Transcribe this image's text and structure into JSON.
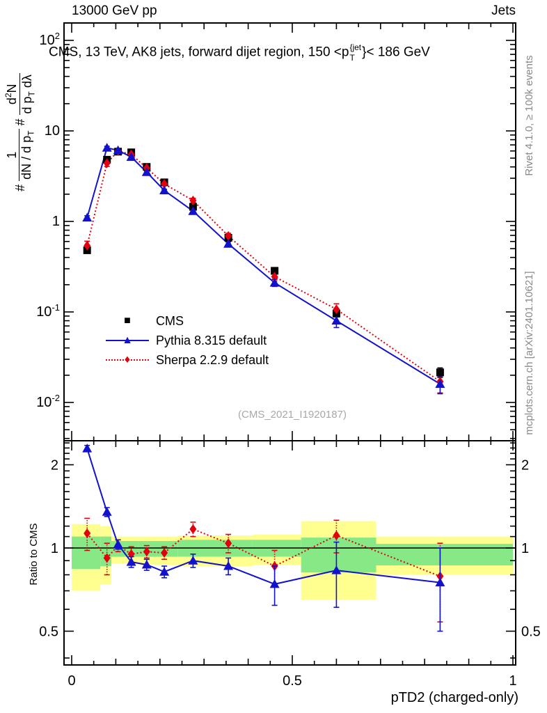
{
  "header": {
    "beam": "13000 GeV pp",
    "topic": "Jets"
  },
  "title": {
    "pre": "CMS, 13 TeV, AK8 jets, forward dijet region, 150 <p",
    "sup": "{jet",
    "sub": "T",
    "post": "}< 186 GeV"
  },
  "watermark": "(CMS_2021_I1920187)",
  "side_notes": {
    "top": "Rivet 4.1.0, ≥ 100k events",
    "bottom": "mcplots.cern.ch [arXiv:2401.10621]"
  },
  "axes": {
    "x": {
      "title": "pTD2 (charged-only)",
      "min": 0,
      "max": 1,
      "ticks": [
        {
          "v": 0,
          "label": "0"
        },
        {
          "v": 0.5,
          "label": "0.5"
        },
        {
          "v": 1,
          "label": "1"
        }
      ]
    },
    "y_main": {
      "label_parts": {
        "hash1": "#",
        "f1num": "1",
        "f1den_pre": "dN / d p",
        "f1den_sub": "T",
        "hash2": "#",
        "f2num_pre": "d",
        "f2num_sup": "2",
        "f2num_post": "N",
        "f2den_pre": "d p",
        "f2den_sub": "T",
        "f2den_post": " dλ"
      },
      "ticks": [
        {
          "v": 100,
          "base": "10",
          "exp": "2"
        },
        {
          "v": 10,
          "base": "10",
          "exp": ""
        },
        {
          "v": 1,
          "base": "1",
          "exp": ""
        },
        {
          "v": 0.1,
          "base": "10",
          "exp": "-1"
        },
        {
          "v": 0.01,
          "base": "10",
          "exp": "-2"
        }
      ]
    },
    "y_ratio": {
      "label": "Ratio to CMS",
      "ticks": [
        {
          "v": 2,
          "label": "2"
        },
        {
          "v": 1,
          "label": "1"
        },
        {
          "v": 0.5,
          "label": "0.5"
        }
      ]
    }
  },
  "legend": [
    {
      "label": "CMS",
      "marker": "square",
      "color": "#000000",
      "line": "none"
    },
    {
      "label": "Pythia 8.315 default",
      "marker": "triangle",
      "color": "#1212cc",
      "line": "solid"
    },
    {
      "label": "Sherpa 2.2.9 default",
      "marker": "diamond",
      "color": "#e3000e",
      "line": "dotted"
    }
  ],
  "chart_data": {
    "type": "line",
    "title": "CMS, 13 TeV, AK8 jets, forward dijet region, 150 < pT^{jet} < 186 GeV",
    "xlabel": "pTD2 (charged-only)",
    "ylabel": "# 1/(dN/dpT) d²N/(dpT dλ)",
    "ratio_ylabel": "Ratio to CMS",
    "x_range": [
      0,
      1
    ],
    "y_main_range": [
      0.004,
      150
    ],
    "y_ratio_range": [
      0.38,
      2.44
    ],
    "grid": false,
    "legend_position": "left-middle",
    "x": [
      0.035,
      0.08,
      0.105,
      0.135,
      0.17,
      0.21,
      0.275,
      0.355,
      0.46,
      0.6,
      0.835
    ],
    "series": [
      {
        "name": "CMS",
        "marker": "square",
        "color": "#000000",
        "line": "none",
        "values": [
          0.48,
          4.8,
          5.9,
          5.8,
          4.0,
          2.7,
          1.45,
          0.66,
          0.285,
          0.096,
          0.0215
        ],
        "rel_err": [
          0.05,
          0.03,
          0.02,
          0.02,
          0.02,
          0.02,
          0.03,
          0.04,
          0.05,
          0.08,
          0.12
        ]
      },
      {
        "name": "Pythia 8.315 default",
        "marker": "triangle",
        "color": "#1212cc",
        "line": "solid",
        "values": [
          1.1,
          6.5,
          6.1,
          5.15,
          3.5,
          2.2,
          1.3,
          0.565,
          0.21,
          0.08,
          0.016
        ],
        "rel_err": [
          0.05,
          0.04,
          0.03,
          0.03,
          0.03,
          0.03,
          0.04,
          0.05,
          0.09,
          0.16,
          0.22
        ]
      },
      {
        "name": "Sherpa 2.2.9 default",
        "marker": "diamond",
        "color": "#e3000e",
        "line": "dotted",
        "values": [
          0.54,
          4.4,
          6.0,
          5.5,
          3.9,
          2.6,
          1.7,
          0.69,
          0.245,
          0.107,
          0.017
        ],
        "rel_err": [
          0.12,
          0.08,
          0.04,
          0.04,
          0.04,
          0.04,
          0.06,
          0.07,
          0.1,
          0.15,
          0.25
        ]
      }
    ],
    "ratio": {
      "baseline": 1,
      "pythia": [
        2.29,
        1.35,
        1.03,
        0.89,
        0.87,
        0.82,
        0.9,
        0.86,
        0.74,
        0.83,
        0.75
      ],
      "pythia_err": [
        0.06,
        0.05,
        0.04,
        0.04,
        0.04,
        0.04,
        0.05,
        0.06,
        0.12,
        0.22,
        0.25
      ],
      "sherpa": [
        1.13,
        0.92,
        1.02,
        0.95,
        0.97,
        0.96,
        1.17,
        1.04,
        0.86,
        1.11,
        0.79
      ],
      "sherpa_err": [
        0.15,
        0.12,
        0.05,
        0.06,
        0.05,
        0.05,
        0.07,
        0.08,
        0.12,
        0.15,
        0.25
      ],
      "band_colors": {
        "outer": "#ffff8f",
        "inner": "#86e986"
      },
      "bands": [
        {
          "xlo": 0.0,
          "xhi": 0.065,
          "yellow": [
            0.7,
            1.22
          ],
          "green": [
            0.84,
            1.1
          ]
        },
        {
          "xlo": 0.065,
          "xhi": 0.09,
          "yellow": [
            0.74,
            1.2
          ],
          "green": [
            0.86,
            1.1
          ]
        },
        {
          "xlo": 0.09,
          "xhi": 0.12,
          "yellow": [
            0.88,
            1.1
          ],
          "green": [
            0.93,
            1.06
          ]
        },
        {
          "xlo": 0.12,
          "xhi": 0.15,
          "yellow": [
            0.88,
            1.1
          ],
          "green": [
            0.93,
            1.06
          ]
        },
        {
          "xlo": 0.15,
          "xhi": 0.19,
          "yellow": [
            0.87,
            1.1
          ],
          "green": [
            0.93,
            1.06
          ]
        },
        {
          "xlo": 0.19,
          "xhi": 0.24,
          "yellow": [
            0.87,
            1.1
          ],
          "green": [
            0.93,
            1.06
          ]
        },
        {
          "xlo": 0.24,
          "xhi": 0.31,
          "yellow": [
            0.86,
            1.11
          ],
          "green": [
            0.93,
            1.07
          ]
        },
        {
          "xlo": 0.31,
          "xhi": 0.41,
          "yellow": [
            0.86,
            1.11
          ],
          "green": [
            0.93,
            1.07
          ]
        },
        {
          "xlo": 0.41,
          "xhi": 0.52,
          "yellow": [
            0.87,
            1.12
          ],
          "green": [
            0.93,
            1.07
          ]
        },
        {
          "xlo": 0.52,
          "xhi": 0.69,
          "yellow": [
            0.65,
            1.25
          ],
          "green": [
            0.815,
            1.09
          ]
        },
        {
          "xlo": 0.69,
          "xhi": 1.0,
          "yellow": [
            0.8,
            1.1
          ],
          "green": [
            0.865,
            1.035
          ]
        }
      ]
    }
  }
}
